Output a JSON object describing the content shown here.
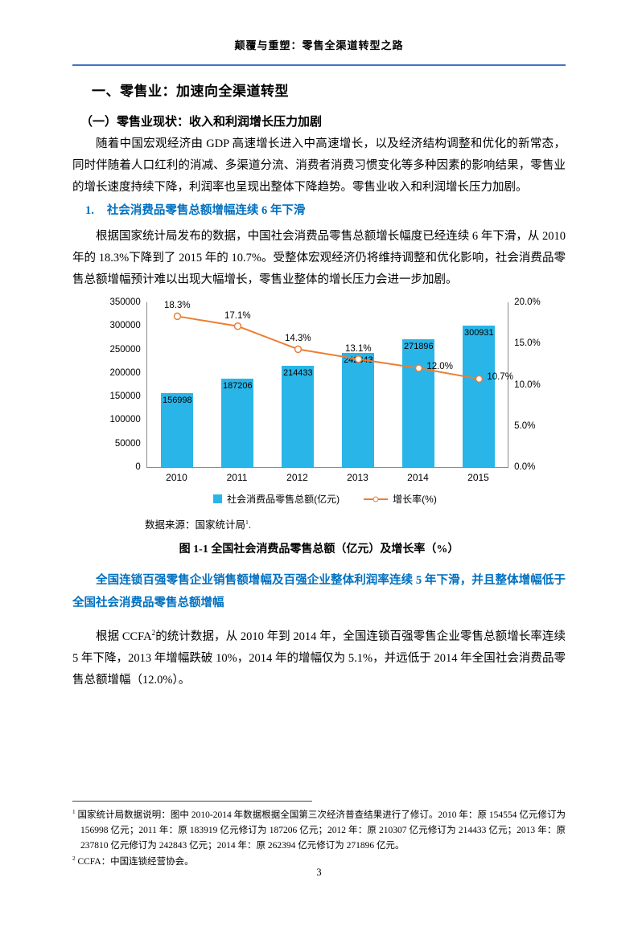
{
  "colors": {
    "accent_blue": "#0070c0",
    "header_rule_blue": "#4472c4",
    "bar_cyan": "#29b5e8",
    "line_orange": "#ed7d31"
  },
  "header": {
    "title": "颠覆与重塑：零售全渠道转型之路"
  },
  "headings": {
    "section": "一、零售业：加速向全渠道转型",
    "subsection": "（一）零售业现状：收入和利润增长压力加剧",
    "item_number": "1.",
    "item_text": "社会消费品零售总额增幅连续 6 年下滑"
  },
  "paragraphs": {
    "intro": "随着中国宏观经济由 GDP 高速增长进入中高速增长，以及经济结构调整和优化的新常态，同时伴随着人口红利的消减、多渠道分流、消费者消费习惯变化等多种因素的影响结果，零售业的增长速度持续下降，利润率也呈现出整体下降趋势。零售业收入和利润增长压力加剧。",
    "stats": "根据国家统计局发布的数据，中国社会消费品零售总额增长幅度已经连续 6 年下滑，从 2010 年的 18.3%下降到了 2015 年的 10.7%。受整体宏观经济仍将维持调整和优化影响，社会消费品零售总额增幅预计难以出现大幅增长，零售业整体的增长压力会进一步加剧。",
    "blue_statement": "全国连锁百强零售企业销售额增幅及百强企业整体利润率连续 5 年下滑，并且整体增幅低于全国社会消费品零售总额增幅",
    "ccfa_before": "根据 CCFA",
    "ccfa_sup": "2",
    "ccfa_after": "的统计数据，从 2010 年到 2014 年，全国连锁百强零售企业零售总额增长率连续 5 年下降，2013 年增幅跌破 10%，2014 年的增幅仅为 5.1%，并远低于 2014 年全国社会消费品零售总额增幅（12.0%）。"
  },
  "figure": {
    "source_prefix": "数据来源：国家统计局",
    "source_sup": "1",
    "source_suffix": ".",
    "caption": "图 1-1 全国社会消费品零售总额（亿元）及增长率（%）"
  },
  "chart_data": {
    "type": "bar+line",
    "categories": [
      "2010",
      "2011",
      "2012",
      "2013",
      "2014",
      "2015"
    ],
    "series": [
      {
        "name": "社会消费品零售总额(亿元)",
        "type": "bar",
        "axis": "left",
        "color": "#29b5e8",
        "values": [
          156998,
          187206,
          214433,
          242843,
          271896,
          300931
        ],
        "labels": [
          "156998",
          "187206",
          "214433",
          "242843",
          "271896",
          "300931"
        ]
      },
      {
        "name": "增长率(%)",
        "type": "line",
        "axis": "right",
        "color": "#ed7d31",
        "values": [
          18.3,
          17.1,
          14.3,
          13.1,
          12.0,
          10.7
        ],
        "labels": [
          "18.3%",
          "17.1%",
          "14.3%",
          "13.1%",
          "12.0%",
          "10.7%"
        ]
      }
    ],
    "left_axis": {
      "min": 0,
      "max": 350000,
      "tick_labels": [
        "350000",
        "300000",
        "250000",
        "200000",
        "150000",
        "100000",
        "50000",
        "0"
      ]
    },
    "right_axis": {
      "min": 0,
      "max": 20,
      "tick_labels": [
        "20.0%",
        "15.0%",
        "10.0%",
        "5.0%",
        "0.0%"
      ]
    },
    "legend_position": "bottom",
    "grid": false
  },
  "footnotes": {
    "fn1_marker": "1",
    "fn1_text": " 国家统计局数据说明：图中 2010-2014 年数据根据全国第三次经济普查结果进行了修订。2010 年：原 154554 亿元修订为 156998 亿元；2011 年：原 183919 亿元修订为 187206 亿元；2012 年：原 210307 亿元修订为 214433 亿元；2013 年：原 237810 亿元修订为 242843 亿元；2014 年：原 262394 亿元修订为 271896 亿元。",
    "fn2_marker": "2",
    "fn2_text": " CCFA：中国连锁经营协会。"
  },
  "footer": {
    "page_number": "3"
  }
}
